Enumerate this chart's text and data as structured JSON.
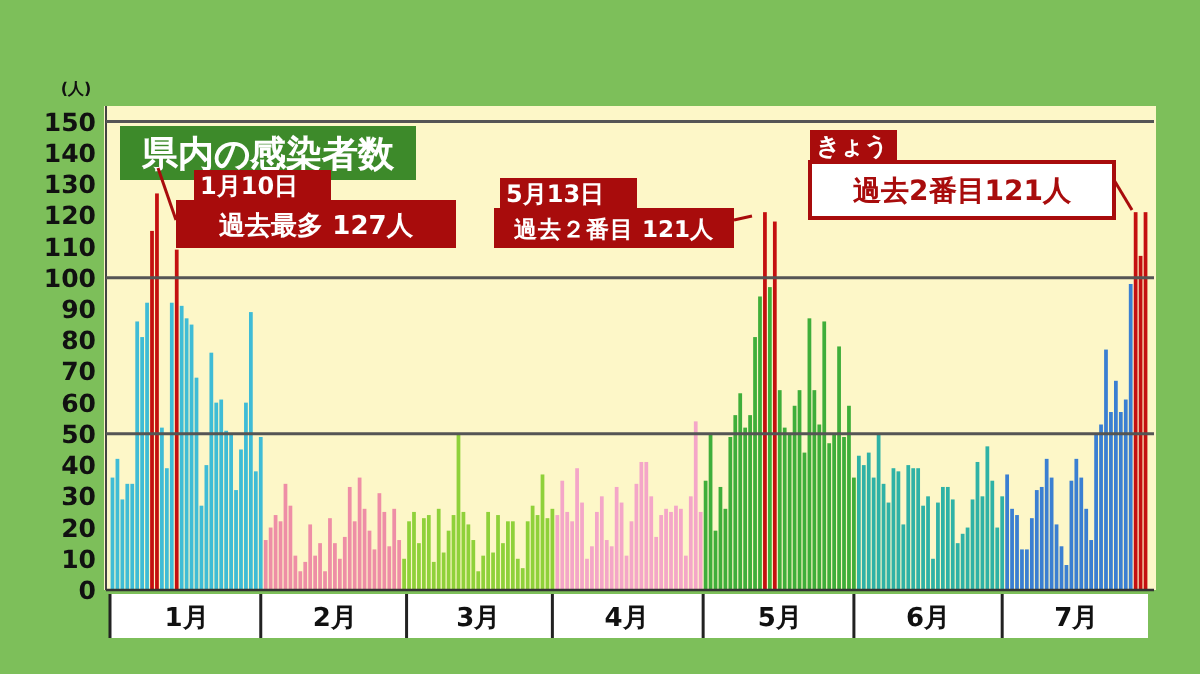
{
  "chart_data": {
    "type": "bar",
    "title": "県内の感染者数",
    "ylabel": "(人)",
    "categories": [
      null,
      null,
      null,
      null,
      null,
      null,
      null,
      null,
      null,
      null,
      null,
      null,
      null,
      null,
      null,
      "1月",
      null,
      null,
      null,
      null,
      null,
      null,
      null,
      null,
      null,
      null,
      null,
      null,
      null,
      null,
      null,
      null,
      null,
      null,
      null,
      null,
      null,
      null,
      null,
      null,
      null,
      null,
      null,
      null,
      null,
      "2月",
      null,
      null,
      null,
      null,
      null,
      null,
      null,
      null,
      null,
      null,
      null,
      null,
      null,
      null,
      null,
      null,
      null,
      null,
      null,
      null,
      null,
      null,
      null,
      null,
      null,
      null,
      null,
      null,
      "3月",
      null,
      null,
      null,
      null,
      null,
      null,
      null,
      null,
      null,
      null,
      null,
      null,
      null,
      null,
      null,
      null,
      null,
      null,
      null,
      null,
      null,
      null,
      null,
      null,
      null,
      null,
      null,
      null,
      null,
      "4月",
      null,
      null,
      null,
      null,
      null,
      null,
      null,
      null,
      null,
      null,
      null,
      null,
      null,
      null,
      null,
      null,
      null,
      null,
      null,
      null,
      null,
      null,
      null,
      null,
      null,
      null,
      null,
      null,
      null,
      null,
      "5月",
      null,
      null,
      null,
      null,
      null,
      null,
      null,
      null,
      null,
      null,
      null,
      null,
      null,
      null,
      null,
      null,
      null,
      null,
      null,
      null,
      null,
      null,
      null,
      null,
      null,
      null,
      null,
      null,
      null,
      "6月",
      null,
      null,
      null,
      null,
      null,
      null,
      null,
      null,
      null,
      null,
      null,
      null,
      null,
      null,
      null,
      null,
      null,
      null,
      null,
      null,
      null,
      null,
      null,
      null,
      null,
      null,
      null,
      null,
      null,
      "7月",
      null,
      null,
      null,
      null,
      null,
      null,
      null,
      null,
      null,
      null,
      null,
      null,
      null,
      null
    ],
    "values": [
      36,
      42,
      29,
      34,
      34,
      86,
      81,
      92,
      115,
      127,
      52,
      39,
      92,
      109,
      91,
      87,
      85,
      68,
      27,
      40,
      76,
      60,
      61,
      51,
      50,
      32,
      45,
      60,
      89,
      38,
      49,
      16,
      20,
      24,
      22,
      34,
      27,
      11,
      6,
      9,
      21,
      11,
      15,
      6,
      23,
      15,
      10,
      17,
      33,
      22,
      36,
      26,
      19,
      13,
      31,
      25,
      14,
      26,
      16,
      10,
      22,
      25,
      15,
      23,
      24,
      9,
      26,
      12,
      19,
      24,
      50,
      25,
      21,
      16,
      6,
      11,
      25,
      12,
      24,
      15,
      22,
      22,
      10,
      7,
      22,
      27,
      24,
      37,
      23,
      26,
      24,
      35,
      25,
      22,
      39,
      28,
      10,
      14,
      25,
      30,
      16,
      14,
      33,
      28,
      11,
      22,
      34,
      41,
      41,
      30,
      17,
      24,
      26,
      25,
      27,
      26,
      11,
      30,
      54,
      25,
      35,
      50,
      19,
      33,
      26,
      49,
      56,
      63,
      52,
      56,
      81,
      94,
      121,
      97,
      118,
      64,
      52,
      50,
      59,
      64,
      44,
      87,
      64,
      53,
      86,
      47,
      50,
      78,
      49,
      59,
      36,
      43,
      40,
      44,
      36,
      50,
      34,
      28,
      39,
      38,
      21,
      40,
      39,
      39,
      27,
      30,
      10,
      28,
      33,
      33,
      29,
      15,
      18,
      20,
      29,
      41,
      30,
      46,
      35,
      20,
      30,
      37,
      26,
      24,
      13,
      13,
      23,
      32,
      33,
      42,
      36,
      21,
      14,
      8,
      35,
      42,
      36,
      26,
      16,
      50,
      53,
      77,
      57,
      67,
      57,
      61,
      98,
      121,
      107,
      121
    ],
    "colors": [
      "#3fbcd6",
      "#3fbcd6",
      "#3fbcd6",
      "#3fbcd6",
      "#3fbcd6",
      "#3fbcd6",
      "#3fbcd6",
      "#3fbcd6",
      "#c41010",
      "#c41010",
      "#3fbcd6",
      "#3fbcd6",
      "#3fbcd6",
      "#c41010",
      "#3fbcd6",
      "#3fbcd6",
      "#3fbcd6",
      "#3fbcd6",
      "#3fbcd6",
      "#3fbcd6",
      "#3fbcd6",
      "#3fbcd6",
      "#3fbcd6",
      "#3fbcd6",
      "#3fbcd6",
      "#3fbcd6",
      "#3fbcd6",
      "#3fbcd6",
      "#3fbcd6",
      "#3fbcd6",
      "#3fbcd6",
      "#ee8ea6",
      "#ee8ea6",
      "#ee8ea6",
      "#ee8ea6",
      "#ee8ea6",
      "#ee8ea6",
      "#ee8ea6",
      "#ee8ea6",
      "#ee8ea6",
      "#ee8ea6",
      "#ee8ea6",
      "#ee8ea6",
      "#ee8ea6",
      "#ee8ea6",
      "#ee8ea6",
      "#ee8ea6",
      "#ee8ea6",
      "#ee8ea6",
      "#ee8ea6",
      "#ee8ea6",
      "#ee8ea6",
      "#ee8ea6",
      "#ee8ea6",
      "#ee8ea6",
      "#ee8ea6",
      "#ee8ea6",
      "#ee8ea6",
      "#ee8ea6",
      "#8fd13a",
      "#8fd13a",
      "#8fd13a",
      "#8fd13a",
      "#8fd13a",
      "#8fd13a",
      "#8fd13a",
      "#8fd13a",
      "#8fd13a",
      "#8fd13a",
      "#8fd13a",
      "#8fd13a",
      "#8fd13a",
      "#8fd13a",
      "#8fd13a",
      "#8fd13a",
      "#8fd13a",
      "#8fd13a",
      "#8fd13a",
      "#8fd13a",
      "#8fd13a",
      "#8fd13a",
      "#8fd13a",
      "#8fd13a",
      "#8fd13a",
      "#8fd13a",
      "#8fd13a",
      "#8fd13a",
      "#8fd13a",
      "#8fd13a",
      "#8fd13a",
      "#f4a6c8",
      "#f4a6c8",
      "#f4a6c8",
      "#f4a6c8",
      "#f4a6c8",
      "#f4a6c8",
      "#f4a6c8",
      "#f4a6c8",
      "#f4a6c8",
      "#f4a6c8",
      "#f4a6c8",
      "#f4a6c8",
      "#f4a6c8",
      "#f4a6c8",
      "#f4a6c8",
      "#f4a6c8",
      "#f4a6c8",
      "#f4a6c8",
      "#f4a6c8",
      "#f4a6c8",
      "#f4a6c8",
      "#f4a6c8",
      "#f4a6c8",
      "#f4a6c8",
      "#f4a6c8",
      "#f4a6c8",
      "#f4a6c8",
      "#f4a6c8",
      "#f4a6c8",
      "#f4a6c8",
      "#3fae3a",
      "#3fae3a",
      "#3fae3a",
      "#3fae3a",
      "#3fae3a",
      "#3fae3a",
      "#3fae3a",
      "#3fae3a",
      "#3fae3a",
      "#3fae3a",
      "#3fae3a",
      "#3fae3a",
      "#c41010",
      "#3fae3a",
      "#c41010",
      "#3fae3a",
      "#3fae3a",
      "#3fae3a",
      "#3fae3a",
      "#3fae3a",
      "#3fae3a",
      "#3fae3a",
      "#3fae3a",
      "#3fae3a",
      "#3fae3a",
      "#3fae3a",
      "#3fae3a",
      "#3fae3a",
      "#3fae3a",
      "#3fae3a",
      "#3fae3a",
      "#2fb2a6",
      "#2fb2a6",
      "#2fb2a6",
      "#2fb2a6",
      "#2fb2a6",
      "#2fb2a6",
      "#2fb2a6",
      "#2fb2a6",
      "#2fb2a6",
      "#2fb2a6",
      "#2fb2a6",
      "#2fb2a6",
      "#2fb2a6",
      "#2fb2a6",
      "#2fb2a6",
      "#2fb2a6",
      "#2fb2a6",
      "#2fb2a6",
      "#2fb2a6",
      "#2fb2a6",
      "#2fb2a6",
      "#2fb2a6",
      "#2fb2a6",
      "#2fb2a6",
      "#2fb2a6",
      "#2fb2a6",
      "#2fb2a6",
      "#2fb2a6",
      "#2fb2a6",
      "#2fb2a6",
      "#3a7fd2",
      "#3a7fd2",
      "#3a7fd2",
      "#3a7fd2",
      "#3a7fd2",
      "#3a7fd2",
      "#3a7fd2",
      "#3a7fd2",
      "#3a7fd2",
      "#3a7fd2",
      "#3a7fd2",
      "#3a7fd2",
      "#3a7fd2",
      "#3a7fd2",
      "#3a7fd2",
      "#3a7fd2",
      "#3a7fd2",
      "#3a7fd2",
      "#3a7fd2",
      "#3a7fd2",
      "#3a7fd2",
      "#3a7fd2",
      "#3a7fd2",
      "#3a7fd2",
      "#3a7fd2",
      "#3a7fd2",
      "#c41010",
      "#c41010",
      "#c41010"
    ],
    "ylim": [
      0,
      155
    ],
    "yticks": [
      0,
      10,
      20,
      30,
      40,
      50,
      60,
      70,
      80,
      90,
      100,
      110,
      120,
      130,
      140,
      150
    ],
    "ref_lines": [
      {
        "axis": "y",
        "value": 50,
        "color": "#555555"
      },
      {
        "axis": "y",
        "value": 100,
        "color": "#555555"
      },
      {
        "axis": "y",
        "value": 150,
        "color": "#555555"
      }
    ],
    "annotations": [
      "1月10日",
      "過去最多 127人",
      "5月13日",
      "過去２番目 121人",
      "きょう",
      "過去2番目121人"
    ]
  }
}
